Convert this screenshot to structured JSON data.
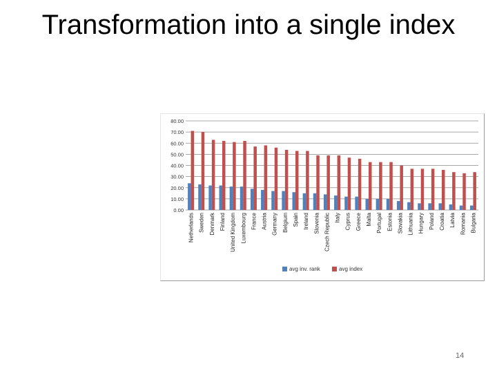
{
  "slide": {
    "title": "Transformation into a single index",
    "page_number": "14"
  },
  "chart_data": {
    "type": "bar",
    "categories": [
      "Netherlands",
      "Sweden",
      "Denmark",
      "Finland",
      "United Kingdom",
      "Luxembourg",
      "France",
      "Austria",
      "Germany",
      "Belgium",
      "Spain",
      "Ireland",
      "Slovenia",
      "Czech Republic",
      "Italy",
      "Cyprus",
      "Greece",
      "Malta",
      "Portugal",
      "Estonia",
      "Slovakia",
      "Lithuania",
      "Hungary",
      "Poland",
      "Croatia",
      "Latvia",
      "Romania",
      "Bulgaria"
    ],
    "series": [
      {
        "name": "avg inv. rank",
        "color": "#4f81bd",
        "values": [
          24,
          23,
          22,
          22,
          21,
          21,
          19,
          18,
          17,
          17,
          16,
          15,
          15,
          14,
          13,
          12,
          12,
          10,
          10,
          10,
          8,
          7,
          6,
          6,
          6,
          5,
          4,
          4
        ]
      },
      {
        "name": "avg index",
        "color": "#c0504d",
        "values": [
          71,
          70,
          63,
          62,
          61,
          62,
          57,
          58,
          56,
          54,
          53,
          53,
          49,
          49,
          49,
          47,
          46,
          43,
          43,
          43,
          40,
          37,
          37,
          37,
          36,
          34,
          33,
          34
        ]
      }
    ],
    "y_ticks": [
      "80.00",
      "70.00",
      "60.00",
      "50.00",
      "40.00",
      "30.00",
      "20.00",
      "10.00",
      "0.00"
    ],
    "ylim": [
      0,
      80
    ],
    "grid": true,
    "legend": "bottom"
  }
}
